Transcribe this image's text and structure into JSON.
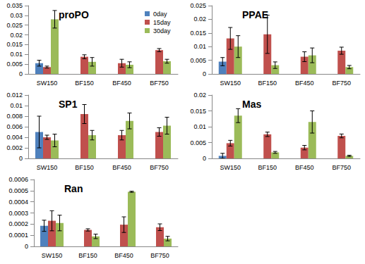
{
  "chart_data": [
    {
      "type": "bar",
      "title": "proPO",
      "categories": [
        "SW150",
        "BF150",
        "BF450",
        "BF750"
      ],
      "series": [
        {
          "name": "0day",
          "color": "#4f81bd",
          "values": [
            0.0055,
            null,
            null,
            null
          ],
          "errors": [
            0.0015,
            null,
            null,
            null
          ]
        },
        {
          "name": "15day",
          "color": "#c0504d",
          "values": [
            0.0035,
            0.0088,
            0.0055,
            0.0122
          ],
          "errors": [
            0.0005,
            0.001,
            0.002,
            0.0008
          ]
        },
        {
          "name": "30day",
          "color": "#9bbb59",
          "values": [
            0.028,
            0.0062,
            0.0047,
            0.0065
          ],
          "errors": [
            0.0045,
            0.0022,
            0.0015,
            0.001
          ]
        }
      ],
      "ylim": [
        0,
        0.035
      ],
      "yticks": [
        0,
        0.005,
        0.01,
        0.015,
        0.02,
        0.025,
        0.03,
        0.035
      ],
      "grid": false,
      "legend": "upper right"
    },
    {
      "type": "bar",
      "title": "PPAE",
      "categories": [
        "SW150",
        "BF150",
        "BF450",
        "BF750"
      ],
      "series": [
        {
          "name": "0day",
          "color": "#4f81bd",
          "values": [
            0.0045,
            null,
            null,
            null
          ],
          "errors": [
            0.0015,
            null,
            null,
            null
          ]
        },
        {
          "name": "15day",
          "color": "#c0504d",
          "values": [
            0.013,
            0.0145,
            0.0063,
            0.0085
          ],
          "errors": [
            0.004,
            0.007,
            0.0018,
            0.0013
          ]
        },
        {
          "name": "30day",
          "color": "#9bbb59",
          "values": [
            0.01,
            0.0032,
            0.0068,
            0.0025
          ],
          "errors": [
            0.004,
            0.0012,
            0.0027,
            0.0006
          ]
        }
      ],
      "ylim": [
        0,
        0.025
      ],
      "yticks": [
        0,
        0.005,
        0.01,
        0.015,
        0.02,
        0.025
      ],
      "grid": false
    },
    {
      "type": "bar",
      "title": "SP1",
      "categories": [
        "SW150",
        "BF150",
        "BF450",
        "BF750"
      ],
      "series": [
        {
          "name": "0day",
          "color": "#4f81bd",
          "values": [
            0.005,
            null,
            null,
            null
          ],
          "errors": [
            0.003,
            null,
            null,
            null
          ]
        },
        {
          "name": "15day",
          "color": "#c0504d",
          "values": [
            0.004,
            0.0084,
            0.0044,
            0.005
          ],
          "errors": [
            0.0004,
            0.0018,
            0.0009,
            0.0008
          ]
        },
        {
          "name": "30day",
          "color": "#9bbb59",
          "values": [
            0.0034,
            0.0044,
            0.0071,
            0.0062
          ],
          "errors": [
            0.0012,
            0.0009,
            0.0015,
            0.0016
          ]
        }
      ],
      "ylim": [
        0,
        0.012
      ],
      "yticks": [
        0,
        0.002,
        0.004,
        0.006,
        0.008,
        0.01,
        0.012
      ],
      "grid": false
    },
    {
      "type": "bar",
      "title": "Mas",
      "categories": [
        "SW150",
        "BF150",
        "BF450",
        "BF750"
      ],
      "series": [
        {
          "name": "0day",
          "color": "#4f81bd",
          "values": [
            0.0008,
            null,
            null,
            null
          ],
          "errors": [
            0.0008,
            null,
            null,
            null
          ]
        },
        {
          "name": "15day",
          "color": "#c0504d",
          "values": [
            0.0048,
            0.0076,
            0.0034,
            0.0071
          ],
          "errors": [
            0.0009,
            0.0007,
            0.0007,
            0.0006
          ]
        },
        {
          "name": "30day",
          "color": "#9bbb59",
          "values": [
            0.0135,
            0.0019,
            0.0115,
            0.0008
          ],
          "errors": [
            0.0022,
            0.0003,
            0.0035,
            0.0002
          ]
        }
      ],
      "ylim": [
        0,
        0.02
      ],
      "yticks": [
        0,
        0.005,
        0.01,
        0.015,
        0.02
      ],
      "grid": false
    },
    {
      "type": "bar",
      "title": "Ran",
      "categories": [
        "SW150",
        "BF150",
        "BF450",
        "BF750"
      ],
      "series": [
        {
          "name": "0day",
          "color": "#4f81bd",
          "values": [
            0.000185,
            null,
            null,
            null
          ],
          "errors": [
            5e-05,
            null,
            null,
            null
          ]
        },
        {
          "name": "15day",
          "color": "#c0504d",
          "values": [
            0.00023,
            0.000148,
            0.000195,
            0.000172
          ],
          "errors": [
            9e-05,
            1e-05,
            7e-05,
            3e-05
          ]
        },
        {
          "name": "30day",
          "color": "#9bbb59",
          "values": [
            0.00021,
            9e-05,
            0.00049,
            7e-05
          ],
          "errors": [
            7e-05,
            2e-05,
            5e-06,
            2e-05
          ]
        }
      ],
      "ylim": [
        0,
        0.0006
      ],
      "yticks": [
        0,
        0.0001,
        0.0002,
        0.0003,
        0.0004,
        0.0005,
        0.0006
      ],
      "grid": false
    }
  ]
}
